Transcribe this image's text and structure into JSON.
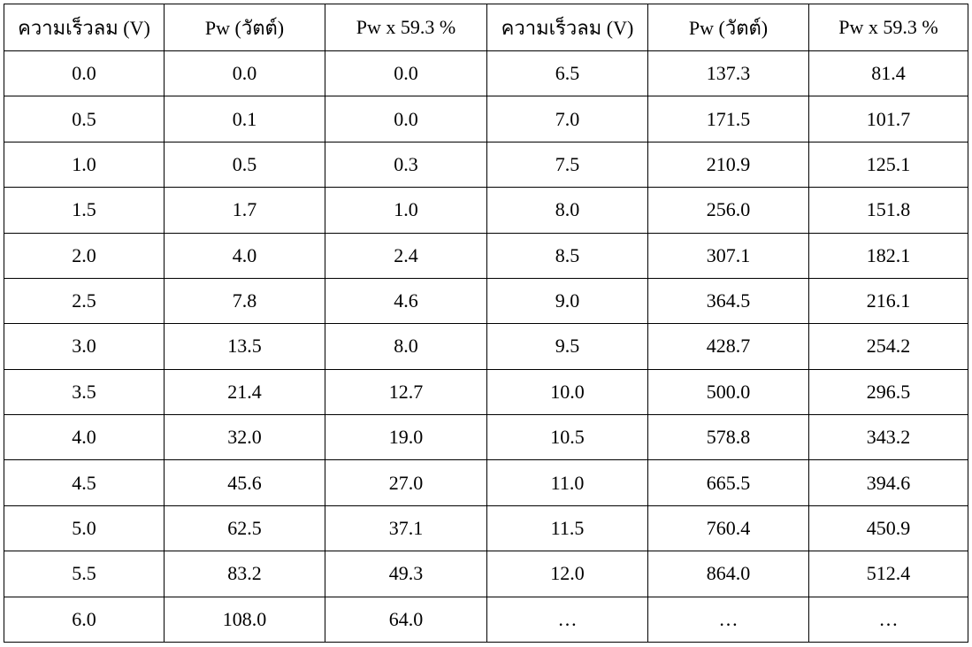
{
  "table": {
    "header": [
      "ความเร็วลม (V)",
      "Pw (วัตต์)",
      "Pw x 59.3 %",
      "ความเร็วลม (V)",
      "Pw (วัตต์)",
      "Pw x 59.3 %"
    ],
    "rows": [
      [
        "0.0",
        "0.0",
        "0.0",
        "6.5",
        "137.3",
        "81.4"
      ],
      [
        "0.5",
        "0.1",
        "0.0",
        "7.0",
        "171.5",
        "101.7"
      ],
      [
        "1.0",
        "0.5",
        "0.3",
        "7.5",
        "210.9",
        "125.1"
      ],
      [
        "1.5",
        "1.7",
        "1.0",
        "8.0",
        "256.0",
        "151.8"
      ],
      [
        "2.0",
        "4.0",
        "2.4",
        "8.5",
        "307.1",
        "182.1"
      ],
      [
        "2.5",
        "7.8",
        "4.6",
        "9.0",
        "364.5",
        "216.1"
      ],
      [
        "3.0",
        "13.5",
        "8.0",
        "9.5",
        "428.7",
        "254.2"
      ],
      [
        "3.5",
        "21.4",
        "12.7",
        "10.0",
        "500.0",
        "296.5"
      ],
      [
        "4.0",
        "32.0",
        "19.0",
        "10.5",
        "578.8",
        "343.2"
      ],
      [
        "4.5",
        "45.6",
        "27.0",
        "11.0",
        "665.5",
        "394.6"
      ],
      [
        "5.0",
        "62.5",
        "37.1",
        "11.5",
        "760.4",
        "450.9"
      ],
      [
        "5.5",
        "83.2",
        "49.3",
        "12.0",
        "864.0",
        "512.4"
      ],
      [
        "6.0",
        "108.0",
        "64.0",
        "…",
        "…",
        "…"
      ]
    ]
  }
}
